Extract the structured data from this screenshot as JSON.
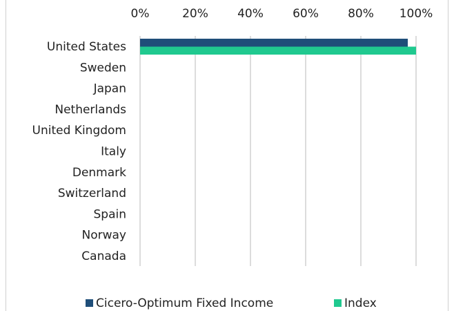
{
  "chart_data": {
    "type": "hbar",
    "categories": [
      "United States",
      "Sweden",
      "Japan",
      "Netherlands",
      "United Kingdom",
      "Italy",
      "Denmark",
      "Switzerland",
      "Spain",
      "Norway",
      "Canada"
    ],
    "series": [
      {
        "name": "Cicero-Optimum Fixed Income",
        "color": "#1f4e79",
        "values": [
          97,
          0,
          0,
          0,
          0,
          0,
          0,
          0,
          0,
          0,
          0
        ]
      },
      {
        "name": "Index",
        "color": "#20c98f",
        "values": [
          100,
          0,
          0,
          0,
          0,
          0,
          0,
          0,
          0,
          0,
          0
        ]
      }
    ],
    "xlim": [
      0,
      100
    ],
    "xticks": [
      {
        "value": 0,
        "label": "0%"
      },
      {
        "value": 20,
        "label": "20%"
      },
      {
        "value": 40,
        "label": "40%"
      },
      {
        "value": 60,
        "label": "60%"
      },
      {
        "value": 80,
        "label": "80%"
      },
      {
        "value": 100,
        "label": "100%"
      }
    ],
    "grid": true,
    "legend": "bottom"
  }
}
